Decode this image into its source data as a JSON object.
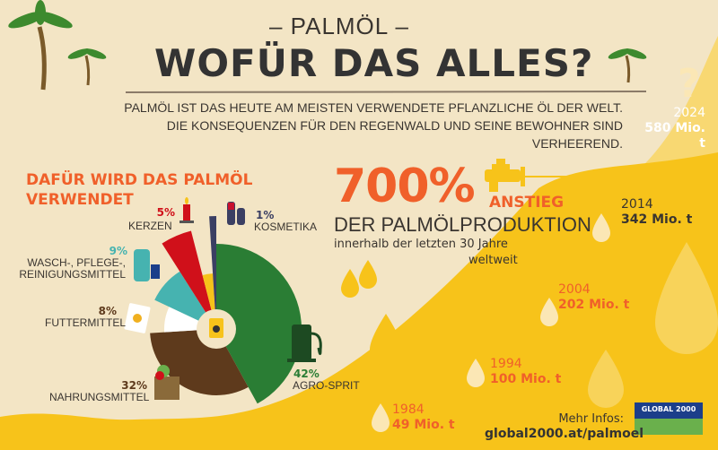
{
  "header": {
    "kicker": "– PALMÖL –",
    "title": "WOFÜR DAS ALLES?",
    "intro_line1": "PALMÖL IST DAS HEUTE AM MEISTEN VERWENDETE PFLANZLICHE ÖL DER WELT.",
    "intro_line2": "DIE KONSEQUENZEN FÜR DEN REGENWALD UND SEINE BEWOHNER SIND VERHEEREND."
  },
  "usage": {
    "heading_line1": "DAFÜR WIRD DAS PALMÖL",
    "heading_line2": "VERWENDET"
  },
  "chart_data": {
    "type": "pie",
    "title": "DAFÜR WIRD DAS PALMÖL VERWENDET",
    "slices": [
      {
        "label": "AGRO-SPRIT",
        "pct_label": "42%",
        "value": 42,
        "color": "#2a7d34"
      },
      {
        "label": "NAHRUNGSMITTEL",
        "pct_label": "32%",
        "value": 32,
        "color": "#5e3a1c"
      },
      {
        "label": "FUTTERMITTEL",
        "pct_label": "8%",
        "value": 8,
        "color": "#ffffff"
      },
      {
        "label_line1": "WASCH-, PFLEGE-,",
        "label_line2": "REINIGUNGSMITTEL",
        "pct_label": "9%",
        "value": 9,
        "color": "#46b3b0"
      },
      {
        "label": "KERZEN",
        "pct_label": "5%",
        "value": 5,
        "color": "#d0101a"
      },
      {
        "value": 3,
        "color": "#f6c21a"
      },
      {
        "label": "KOSMETIKA",
        "pct_label": "1%",
        "value": 1,
        "color": "#3b3f63"
      }
    ]
  },
  "growth": {
    "big_number": "700%",
    "big_word": "ANSTIEG",
    "line1": "DER PALMÖLPRODUKTION",
    "line2": "innerhalb der letzten 30 Jahre",
    "line3": "weltweit"
  },
  "production": [
    {
      "year": "1984",
      "value": "49 Mio. t"
    },
    {
      "year": "1994",
      "value": "100 Mio. t"
    },
    {
      "year": "2004",
      "value": "202 Mio. t"
    },
    {
      "year": "2014",
      "value": "342 Mio. t"
    },
    {
      "year": "2024",
      "value": "580 Mio. t",
      "mark": "?"
    }
  ],
  "footer": {
    "more_info": "Mehr Infos:",
    "url": "global2000.at/palmoel",
    "logo_text": "GLOBAL 2000"
  },
  "colors": {
    "orange": "#f0602a",
    "yellow": "#f7c31a",
    "beige": "#f3e5c5",
    "green": "#2a7d34"
  }
}
